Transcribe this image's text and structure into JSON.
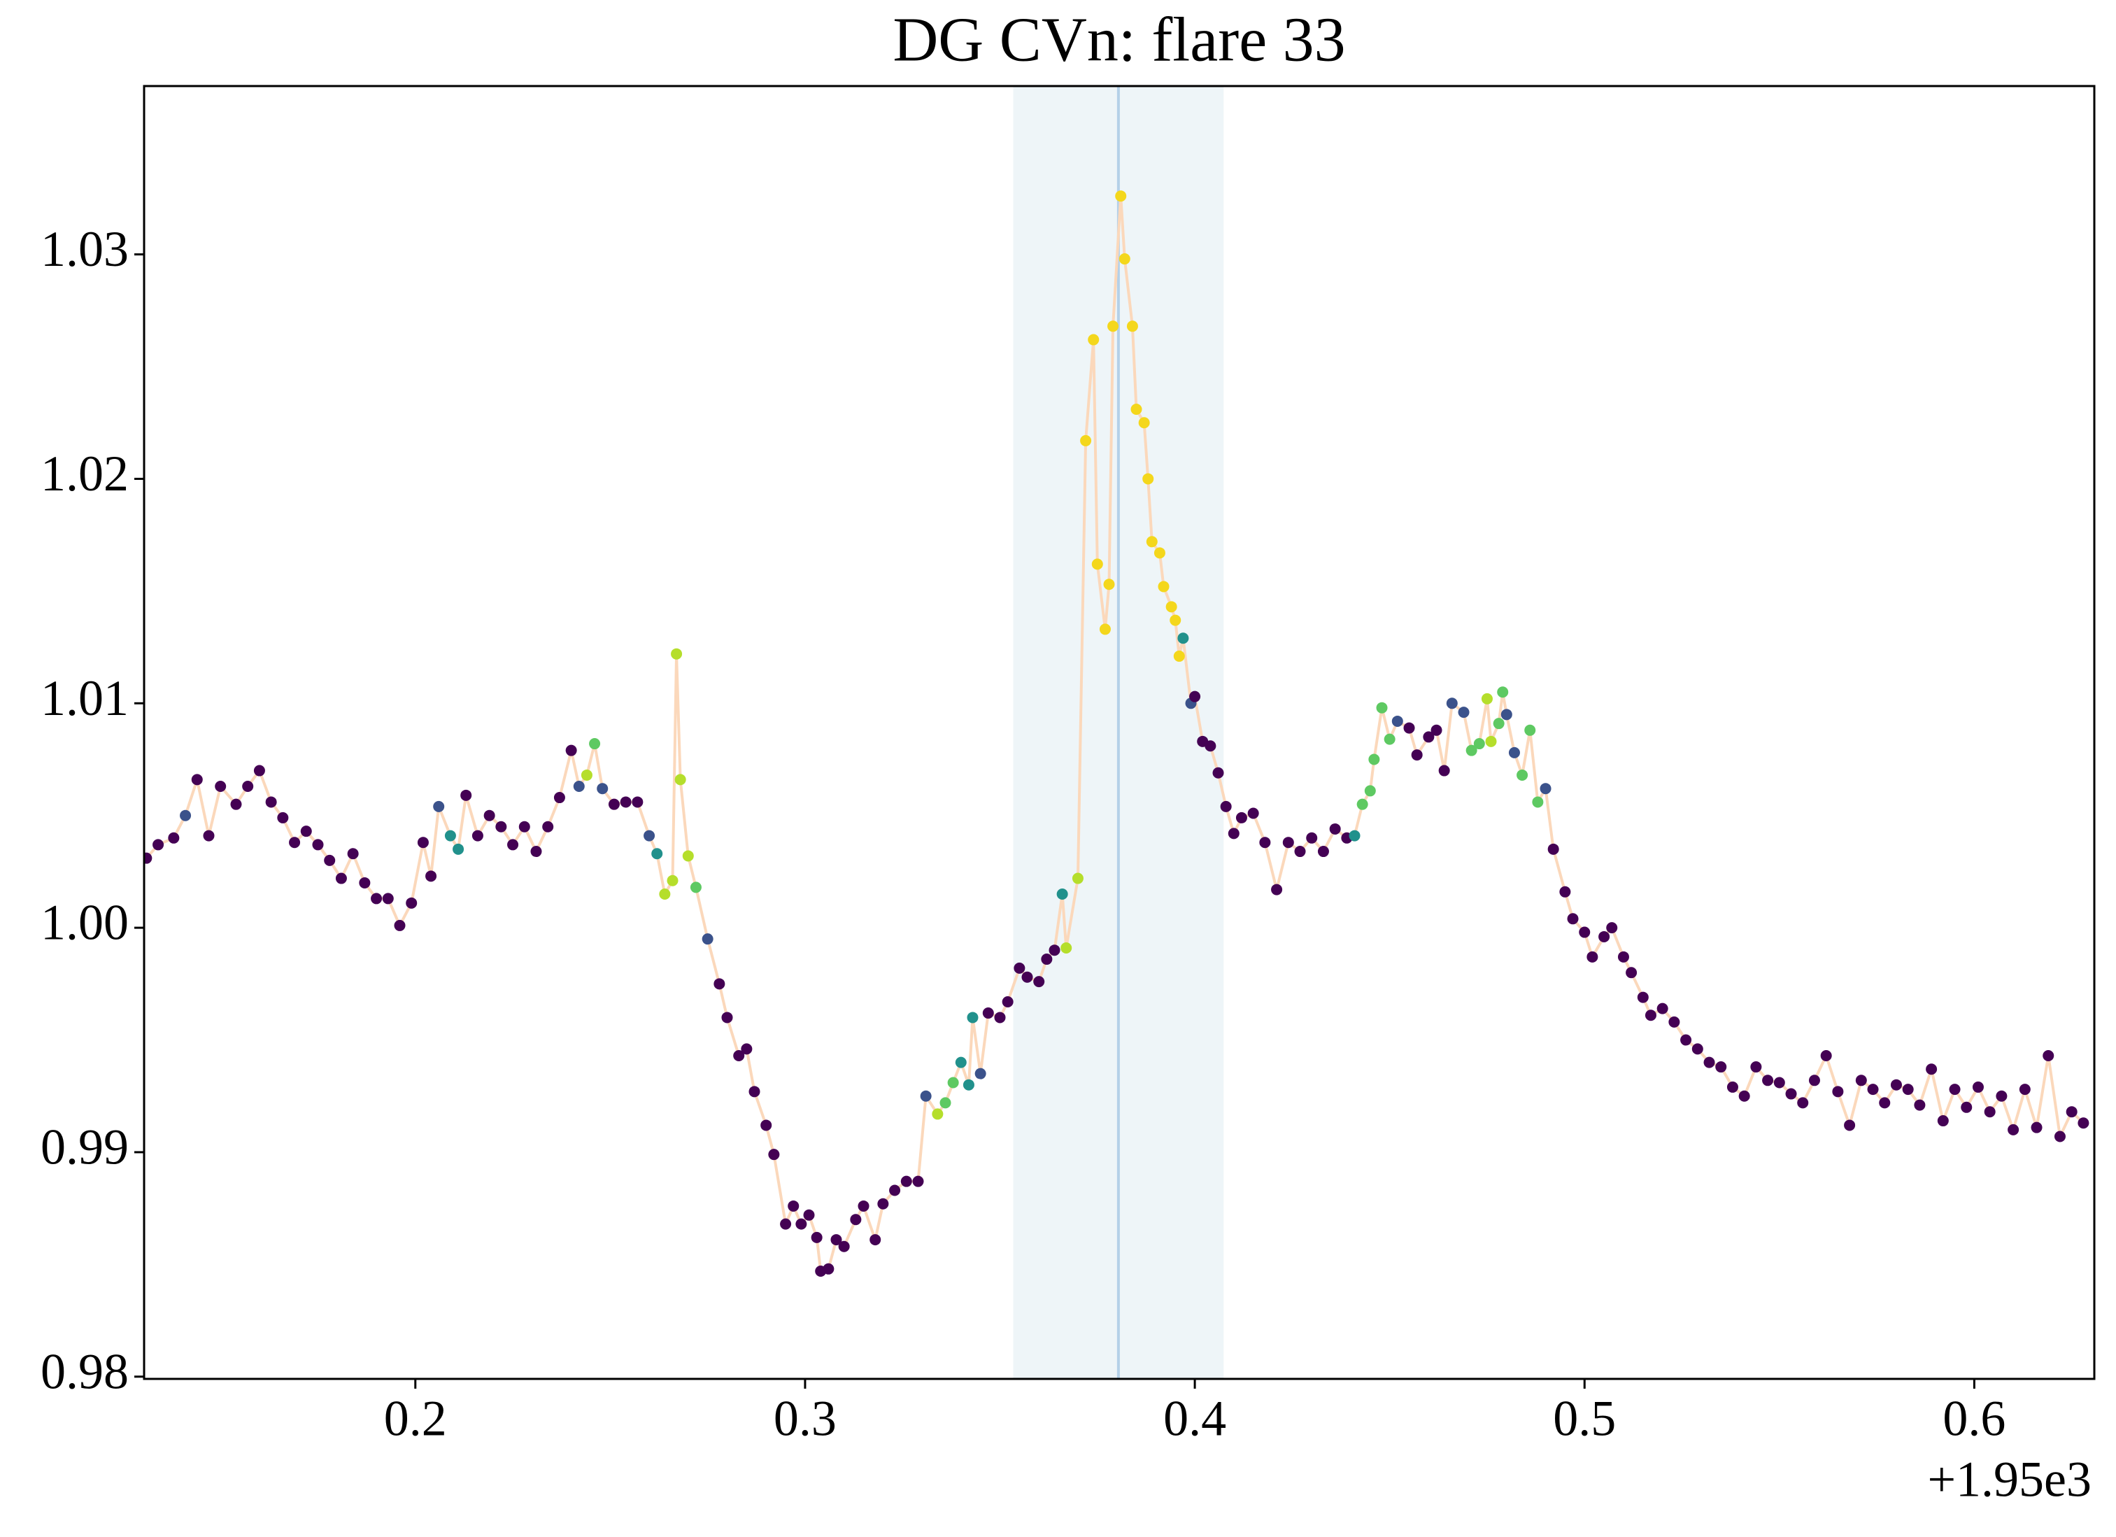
{
  "chart_data": {
    "type": "line",
    "markers": true,
    "title": "DG CVn: flare 33",
    "x_offset_label": "+1.95e3",
    "xlim": [
      1950.1304,
      1950.6308
    ],
    "ylim": [
      0.9799,
      1.0375
    ],
    "xticks": [
      {
        "value": 1950.2,
        "label": "0.2"
      },
      {
        "value": 1950.3,
        "label": "0.3"
      },
      {
        "value": 1950.4,
        "label": "0.4"
      },
      {
        "value": 1950.5,
        "label": "0.5"
      },
      {
        "value": 1950.6,
        "label": "0.6"
      }
    ],
    "yticks": [
      0.98,
      0.99,
      {
        "value": 1,
        "label": "1.00"
      },
      1.01,
      1.02,
      1.03
    ],
    "grid": false,
    "spans": [
      {
        "x0": 1950.3534,
        "x1": 1950.4074,
        "color": "#eef5f8"
      }
    ],
    "vlines": [
      {
        "x": 1950.3804,
        "color": "#b4d0e8"
      }
    ],
    "x": [
      1950.131,
      1950.134,
      1950.138,
      1950.141,
      1950.144,
      1950.147,
      1950.15,
      1950.154,
      1950.157,
      1950.16,
      1950.163,
      1950.166,
      1950.169,
      1950.172,
      1950.175,
      1950.178,
      1950.181,
      1950.184,
      1950.187,
      1950.19,
      1950.193,
      1950.196,
      1950.199,
      1950.202,
      1950.204,
      1950.206,
      1950.209,
      1950.211,
      1950.213,
      1950.216,
      1950.219,
      1950.222,
      1950.225,
      1950.228,
      1950.231,
      1950.234,
      1950.237,
      1950.24,
      1950.242,
      1950.244,
      1950.246,
      1950.248,
      1950.251,
      1950.254,
      1950.257,
      1950.26,
      1950.262,
      1950.264,
      1950.266,
      1950.267,
      1950.268,
      1950.27,
      1950.272,
      1950.275,
      1950.278,
      1950.28,
      1950.283,
      1950.285,
      1950.287,
      1950.29,
      1950.292,
      1950.295,
      1950.297,
      1950.299,
      1950.301,
      1950.303,
      1950.304,
      1950.306,
      1950.308,
      1950.31,
      1950.313,
      1950.315,
      1950.318,
      1950.32,
      1950.323,
      1950.326,
      1950.329,
      1950.331,
      1950.334,
      1950.336,
      1950.338,
      1950.34,
      1950.342,
      1950.343,
      1950.345,
      1950.347,
      1950.35,
      1950.352,
      1950.355,
      1950.357,
      1950.36,
      1950.362,
      1950.364,
      1950.366,
      1950.367,
      1950.37,
      1950.372,
      1950.374,
      1950.375,
      1950.377,
      1950.378,
      1950.379,
      1950.381,
      1950.382,
      1950.384,
      1950.385,
      1950.387,
      1950.388,
      1950.389,
      1950.391,
      1950.392,
      1950.394,
      1950.395,
      1950.396,
      1950.397,
      1950.399,
      1950.4,
      1950.402,
      1950.404,
      1950.406,
      1950.408,
      1950.41,
      1950.412,
      1950.415,
      1950.418,
      1950.421,
      1950.424,
      1950.427,
      1950.43,
      1950.433,
      1950.436,
      1950.439,
      1950.441,
      1950.443,
      1950.445,
      1950.446,
      1950.448,
      1950.45,
      1950.452,
      1950.455,
      1950.457,
      1950.46,
      1950.462,
      1950.464,
      1950.466,
      1950.469,
      1950.471,
      1950.473,
      1950.475,
      1950.476,
      1950.478,
      1950.479,
      1950.48,
      1950.482,
      1950.484,
      1950.486,
      1950.488,
      1950.49,
      1950.492,
      1950.495,
      1950.497,
      1950.5,
      1950.502,
      1950.505,
      1950.507,
      1950.51,
      1950.512,
      1950.515,
      1950.517,
      1950.52,
      1950.523,
      1950.526,
      1950.529,
      1950.532,
      1950.535,
      1950.538,
      1950.541,
      1950.544,
      1950.547,
      1950.55,
      1950.553,
      1950.556,
      1950.559,
      1950.562,
      1950.565,
      1950.568,
      1950.571,
      1950.574,
      1950.577,
      1950.58,
      1950.583,
      1950.586,
      1950.589,
      1950.592,
      1950.595,
      1950.598,
      1950.601,
      1950.604,
      1950.607,
      1950.61,
      1950.613,
      1950.616,
      1950.619,
      1950.622,
      1950.625,
      1950.628
    ],
    "series": [
      {
        "line_color": "#fbd8bb",
        "values": [
          1.0031,
          1.0037,
          1.004,
          1.005,
          1.0066,
          1.0041,
          1.0063,
          1.0055,
          1.0063,
          1.007,
          1.0056,
          1.0049,
          1.0038,
          1.0043,
          1.0037,
          1.003,
          1.0022,
          1.0033,
          1.002,
          1.0013,
          1.0013,
          1.0001,
          1.0011,
          1.0038,
          1.0023,
          1.0054,
          1.0041,
          1.0035,
          1.0059,
          1.0041,
          1.005,
          1.0045,
          1.0037,
          1.0045,
          1.0034,
          1.0045,
          1.0058,
          1.0079,
          1.0063,
          1.0068,
          1.0082,
          1.0062,
          1.0055,
          1.0056,
          1.0056,
          1.0041,
          1.0033,
          1.0015,
          1.0021,
          1.0122,
          1.0066,
          1.0032,
          1.0018,
          0.9995,
          0.9975,
          0.996,
          0.9943,
          0.9946,
          0.9927,
          0.9912,
          0.9899,
          0.9868,
          0.9876,
          0.9868,
          0.9872,
          0.9862,
          0.9847,
          0.9848,
          0.9861,
          0.9858,
          0.987,
          0.9876,
          0.9861,
          0.9877,
          0.9883,
          0.9887,
          0.9887,
          0.9925,
          0.9917,
          0.9922,
          0.9931,
          0.994,
          0.993,
          0.996,
          0.9935,
          0.9962,
          0.996,
          0.9967,
          0.9982,
          0.9978,
          0.9976,
          0.9986,
          0.999,
          1.0015,
          0.9991,
          1.0022,
          1.0217,
          1.0262,
          1.0162,
          1.0133,
          1.0153,
          1.0268,
          1.0326,
          1.0298,
          1.0268,
          1.0231,
          1.0225,
          1.02,
          1.0172,
          1.0167,
          1.0152,
          1.0143,
          1.0137,
          1.0121,
          1.0129,
          1.01,
          1.0103,
          1.0083,
          1.0081,
          1.0069,
          1.0054,
          1.0042,
          1.0049,
          1.0051,
          1.0038,
          1.0017,
          1.0038,
          1.0034,
          1.004,
          1.0034,
          1.0044,
          1.004,
          1.0041,
          1.0055,
          1.0061,
          1.0075,
          1.0098,
          1.0084,
          1.0092,
          1.0089,
          1.0077,
          1.0085,
          1.0088,
          1.007,
          1.01,
          1.0096,
          1.0079,
          1.0082,
          1.0102,
          1.0083,
          1.0091,
          1.0105,
          1.0095,
          1.0078,
          1.0068,
          1.0088,
          1.0056,
          1.0062,
          1.0035,
          1.0016,
          1.0004,
          0.9998,
          0.9987,
          0.9996,
          1,
          0.9987,
          0.998,
          0.9969,
          0.9961,
          0.9964,
          0.9958,
          0.995,
          0.9946,
          0.994,
          0.9938,
          0.9929,
          0.9925,
          0.9938,
          0.9932,
          0.9931,
          0.9926,
          0.9922,
          0.9932,
          0.9943,
          0.9927,
          0.9912,
          0.9932,
          0.9928,
          0.9922,
          0.993,
          0.9928,
          0.9921,
          0.9937,
          0.9914,
          0.9928,
          0.992,
          0.9929,
          0.9918,
          0.9925,
          0.991,
          0.9928,
          0.9911,
          0.9943,
          0.9907,
          0.9918,
          0.9913
        ],
        "colors": [
          "#440154",
          "#440154",
          "#440154",
          "#3b528b",
          "#440154",
          "#440154",
          "#440154",
          "#440154",
          "#440154",
          "#440154",
          "#440154",
          "#440154",
          "#440154",
          "#440154",
          "#440154",
          "#440154",
          "#440154",
          "#440154",
          "#440154",
          "#440154",
          "#440154",
          "#440154",
          "#440154",
          "#440154",
          "#440154",
          "#3b528b",
          "#21918c",
          "#21918c",
          "#440154",
          "#440154",
          "#440154",
          "#440154",
          "#440154",
          "#440154",
          "#440154",
          "#440154",
          "#440154",
          "#440154",
          "#3b528b",
          "#b5de2b",
          "#5ec962",
          "#3b528b",
          "#440154",
          "#440154",
          "#440154",
          "#3b528b",
          "#21918c",
          "#b5de2b",
          "#b5de2b",
          "#b5de2b",
          "#b5de2b",
          "#b5de2b",
          "#5ec962",
          "#3b528b",
          "#440154",
          "#440154",
          "#440154",
          "#440154",
          "#440154",
          "#440154",
          "#440154",
          "#440154",
          "#440154",
          "#440154",
          "#440154",
          "#440154",
          "#440154",
          "#440154",
          "#440154",
          "#440154",
          "#440154",
          "#440154",
          "#440154",
          "#440154",
          "#440154",
          "#440154",
          "#440154",
          "#3b528b",
          "#b5de2b",
          "#5ec962",
          "#5ec962",
          "#21918c",
          "#21918c",
          "#21918c",
          "#3b528b",
          "#440154",
          "#440154",
          "#440154",
          "#440154",
          "#440154",
          "#440154",
          "#440154",
          "#440154",
          "#21918c",
          "#b5de2b",
          "#b5de2b",
          "#f4d71c",
          "#f4d71c",
          "#f4d71c",
          "#f4d71c",
          "#f4d71c",
          "#f4d71c",
          "#f4d71c",
          "#f4d71c",
          "#f4d71c",
          "#f4d71c",
          "#f4d71c",
          "#f4d71c",
          "#f4d71c",
          "#f4d71c",
          "#f4d71c",
          "#f4d71c",
          "#f4d71c",
          "#f4d71c",
          "#21918c",
          "#3b528b",
          "#440154",
          "#440154",
          "#440154",
          "#440154",
          "#440154",
          "#440154",
          "#440154",
          "#440154",
          "#440154",
          "#440154",
          "#440154",
          "#440154",
          "#440154",
          "#440154",
          "#440154",
          "#440154",
          "#21918c",
          "#5ec962",
          "#5ec962",
          "#5ec962",
          "#5ec962",
          "#5ec962",
          "#3b528b",
          "#440154",
          "#440154",
          "#440154",
          "#440154",
          "#440154",
          "#3b528b",
          "#3b528b",
          "#5ec962",
          "#5ec962",
          "#b5de2b",
          "#b5de2b",
          "#5ec962",
          "#5ec962",
          "#3b528b",
          "#3b528b",
          "#5ec962",
          "#5ec962",
          "#5ec962",
          "#3b528b",
          "#440154",
          "#440154",
          "#440154",
          "#440154",
          "#440154",
          "#440154",
          "#440154",
          "#440154",
          "#440154",
          "#440154",
          "#440154",
          "#440154",
          "#440154",
          "#440154",
          "#440154",
          "#440154",
          "#440154",
          "#440154",
          "#440154",
          "#440154",
          "#440154",
          "#440154",
          "#440154",
          "#440154",
          "#440154",
          "#440154",
          "#440154",
          "#440154",
          "#440154",
          "#440154",
          "#440154",
          "#440154",
          "#440154",
          "#440154",
          "#440154",
          "#440154",
          "#440154",
          "#440154",
          "#440154",
          "#440154",
          "#440154",
          "#440154",
          "#440154",
          "#440154",
          "#440154",
          "#440154",
          "#440154",
          "#440154"
        ]
      }
    ]
  }
}
